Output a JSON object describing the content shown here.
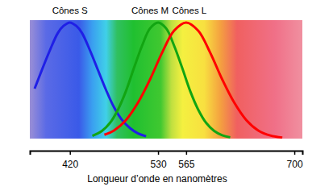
{
  "chart_data": {
    "type": "line",
    "xlabel": "Longueur d’onde en nanomètres",
    "xlim": [
      370,
      710
    ],
    "xticks": [
      420,
      530,
      565,
      700
    ],
    "ylim": [
      0,
      1.02
    ],
    "tick_labels": "x",
    "series": [
      {
        "name": "Cônes S",
        "color": "#1f1fe6",
        "x": [
          376,
          385,
          395,
          405,
          412,
          420,
          428,
          435,
          445,
          455,
          465,
          475,
          485,
          495,
          505,
          515
        ],
        "values": [
          0.43,
          0.59,
          0.76,
          0.91,
          0.97,
          1.0,
          0.97,
          0.91,
          0.76,
          0.59,
          0.42,
          0.27,
          0.16,
          0.09,
          0.044,
          0.02
        ]
      },
      {
        "name": "Cônes M",
        "color": "#12a512",
        "x": [
          448,
          460,
          470,
          480,
          490,
          500,
          510,
          520,
          530,
          540,
          550,
          560,
          570,
          580,
          590,
          600,
          610,
          620
        ],
        "values": [
          0.024,
          0.066,
          0.135,
          0.25,
          0.41,
          0.61,
          0.8,
          0.95,
          1.0,
          0.95,
          0.8,
          0.61,
          0.41,
          0.25,
          0.135,
          0.066,
          0.029,
          0.011
        ]
      },
      {
        "name": "Cônes L",
        "color": "#ff0000",
        "x": [
          463,
          475,
          490,
          505,
          520,
          535,
          550,
          565,
          580,
          595,
          610,
          625,
          640,
          655,
          670,
          685
        ],
        "values": [
          0.033,
          0.07,
          0.16,
          0.31,
          0.51,
          0.74,
          0.93,
          1.0,
          0.93,
          0.74,
          0.51,
          0.31,
          0.16,
          0.07,
          0.027,
          0.009
        ]
      }
    ]
  }
}
